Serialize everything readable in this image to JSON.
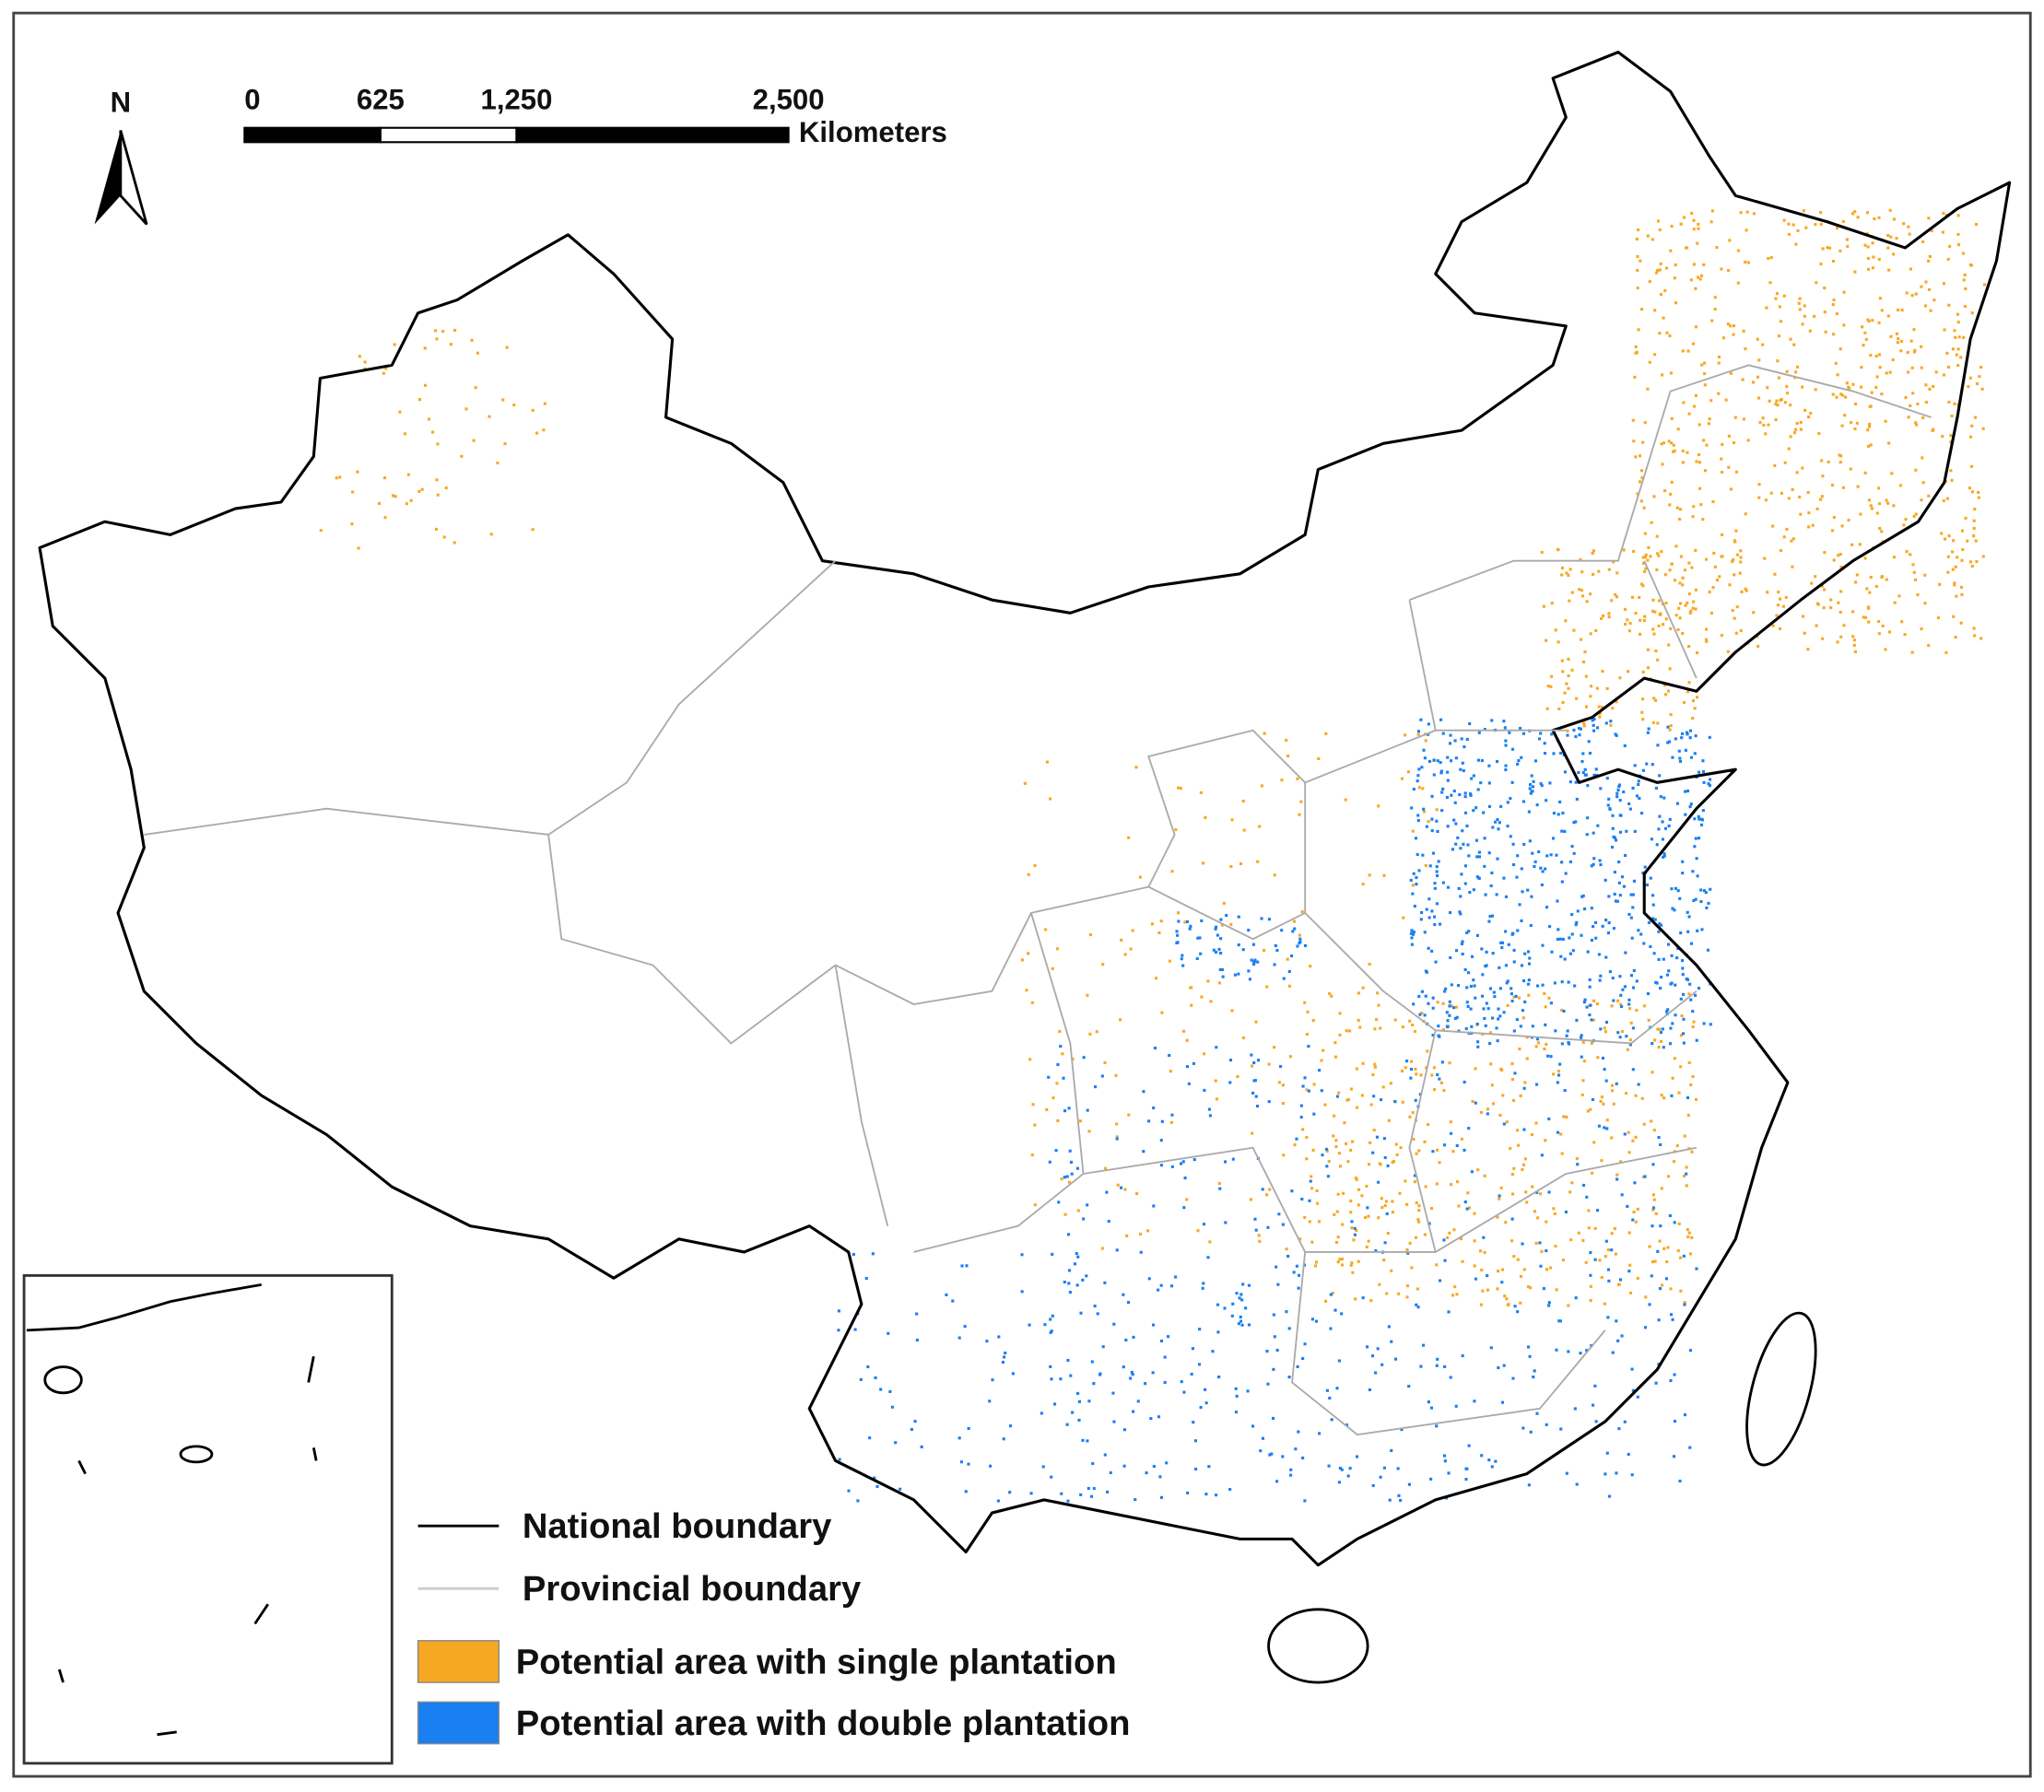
{
  "north_label": "N",
  "scale_bar": {
    "ticks": [
      0,
      625,
      {
        "value": 1250,
        "label": "1,250"
      },
      {
        "value": 2500,
        "label": "2,500"
      }
    ],
    "unit": "Kilometers"
  },
  "legend": [
    {
      "label": "National boundary"
    },
    {
      "label": "Provincial boundary"
    },
    {
      "label": "Potential area with single plantation",
      "color": "#f7a823"
    },
    {
      "label": "Potential area with double plantation",
      "color": "#1a7ff0"
    }
  ]
}
